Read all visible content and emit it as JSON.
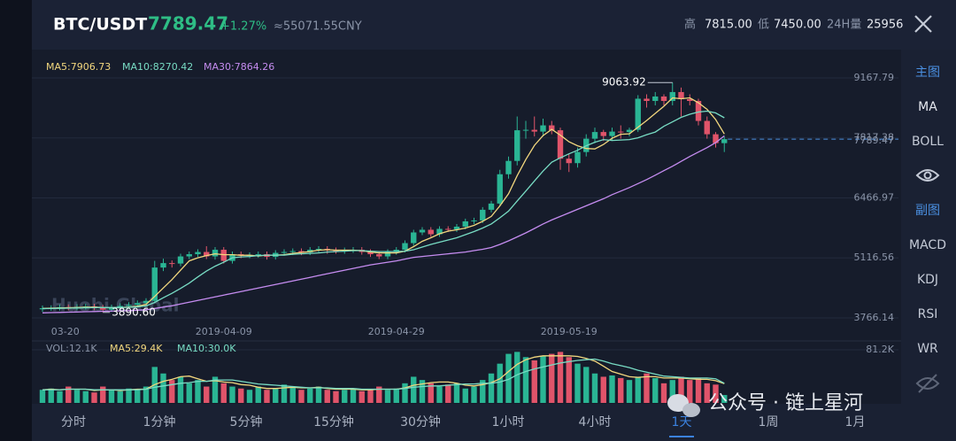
{
  "header": {
    "pair": "BTC/USDT",
    "price": "7789.47",
    "change": "+1.27%",
    "cny": "≈55071.55CNY",
    "high_label": "高",
    "high": "7815.00",
    "low_label": "低",
    "low": "7450.00",
    "vol_label": "24H量",
    "vol": "25956"
  },
  "sidebar": {
    "main": "主图",
    "main_items": [
      "MA",
      "BOLL"
    ],
    "sub": "副图",
    "sub_items": [
      "MACD",
      "KDJ",
      "RSI",
      "WR"
    ]
  },
  "tabs": [
    "分时",
    "1分钟",
    "5分钟",
    "15分钟",
    "30分钟",
    "1小时",
    "4小时",
    "1天",
    "1周",
    "1月"
  ],
  "active_tab": 7,
  "watermark": "公众号 · 链上星河",
  "logo": "Huobi Global",
  "chart_data": {
    "type": "candlestick",
    "up_color": "#2ab594",
    "down_color": "#e0546a",
    "categories": [
      null,
      "03-20",
      null,
      null,
      null,
      null,
      null,
      null,
      null,
      null,
      null,
      null,
      null,
      null,
      null,
      null,
      null,
      null,
      null,
      null,
      null,
      "2019-04-09",
      null,
      null,
      null,
      null,
      null,
      null,
      null,
      null,
      null,
      null,
      null,
      null,
      null,
      null,
      null,
      null,
      null,
      null,
      null,
      "2019-04-29",
      null,
      null,
      null,
      null,
      null,
      null,
      null,
      null,
      null,
      null,
      null,
      null,
      null,
      null,
      null,
      null,
      null,
      null,
      null,
      "2019-05-19",
      null,
      null,
      null,
      null,
      null,
      null,
      null,
      null,
      null,
      null,
      null,
      null,
      null,
      null,
      null,
      null,
      null,
      null
    ],
    "open": [
      3960,
      3985,
      3990,
      4010,
      3995,
      4015,
      4025,
      4000,
      3950,
      4005,
      4035,
      4060,
      4100,
      4150,
      4900,
      5000,
      4990,
      5150,
      5200,
      5250,
      5150,
      5300,
      5050,
      5200,
      5170,
      5180,
      5200,
      5140,
      5230,
      5250,
      5270,
      5240,
      5300,
      5320,
      5290,
      5270,
      5290,
      5300,
      5250,
      5200,
      5150,
      5250,
      5300,
      5450,
      5690,
      5750,
      5650,
      5770,
      5760,
      5820,
      5940,
      5960,
      6200,
      6340,
      7000,
      7300,
      7990,
      8000,
      7960,
      8100,
      7990,
      7350,
      7250,
      7500,
      7800,
      7950,
      7860,
      7960,
      7950,
      8000,
      8700,
      8650,
      8750,
      8650,
      8850,
      8690,
      8650,
      8200,
      7900,
      7700
    ],
    "high": [
      4045,
      4050,
      4070,
      4070,
      4075,
      4085,
      4085,
      4060,
      4065,
      4095,
      4120,
      4160,
      4210,
      5050,
      5100,
      5060,
      5210,
      5260,
      5310,
      5380,
      5360,
      5360,
      5260,
      5260,
      5240,
      5260,
      5260,
      5290,
      5310,
      5330,
      5330,
      5360,
      5380,
      5380,
      5350,
      5350,
      5360,
      5360,
      5310,
      5260,
      5310,
      5360,
      5510,
      5750,
      5810,
      5810,
      5830,
      5830,
      5880,
      6000,
      6020,
      6260,
      6400,
      7100,
      7400,
      8300,
      8200,
      8300,
      8250,
      8200,
      8050,
      7450,
      7600,
      7900,
      8050,
      8000,
      8050,
      8100,
      8050,
      8780,
      8800,
      8850,
      8800,
      9063.92,
      8950,
      8800,
      8700,
      8300,
      7950,
      7850
    ],
    "low": [
      3900,
      3925,
      3930,
      3935,
      3935,
      3955,
      3940,
      3890.6,
      3900,
      3945,
      3975,
      4000,
      4040,
      4100,
      4820,
      4900,
      4930,
      5090,
      5140,
      5090,
      5080,
      4990,
      4990,
      5110,
      5110,
      5120,
      5080,
      5080,
      5170,
      5180,
      5180,
      5180,
      5240,
      5210,
      5210,
      5210,
      5230,
      5190,
      5140,
      5090,
      5090,
      5190,
      5240,
      5390,
      5630,
      5590,
      5590,
      5700,
      5700,
      5760,
      5880,
      5900,
      6140,
      6280,
      6900,
      7200,
      7800,
      7850,
      7850,
      7900,
      7100,
      7050,
      7150,
      7400,
      7700,
      7750,
      7750,
      7800,
      7850,
      7950,
      8500,
      8550,
      8550,
      8550,
      8300,
      8550,
      8100,
      7800,
      7600,
      7500
    ],
    "close": [
      3985,
      3990,
      4010,
      3995,
      4015,
      4025,
      4000,
      3950,
      4005,
      4035,
      4060,
      4100,
      4150,
      4900,
      5000,
      4990,
      5150,
      5200,
      5250,
      5150,
      5300,
      5050,
      5200,
      5170,
      5180,
      5200,
      5140,
      5230,
      5250,
      5270,
      5240,
      5300,
      5320,
      5290,
      5270,
      5290,
      5300,
      5250,
      5200,
      5150,
      5250,
      5300,
      5450,
      5690,
      5750,
      5650,
      5770,
      5760,
      5820,
      5940,
      5960,
      6200,
      6340,
      7000,
      7300,
      7990,
      8000,
      7960,
      8100,
      7990,
      7350,
      7250,
      7500,
      7800,
      7950,
      7860,
      7960,
      7950,
      8000,
      8700,
      8650,
      8750,
      8650,
      8850,
      8690,
      8650,
      8200,
      7900,
      7700,
      7789.47
    ],
    "min_label": "3890.60",
    "ylim": [
      3766.14,
      9167.79
    ],
    "yticks": [
      9167.79,
      7817.38,
      6466.97,
      5116.56,
      3766.14
    ],
    "grid": true,
    "ma": [
      {
        "name": "MA5:7906.73",
        "color": "#f2d77e",
        "values": [
          3980,
          3985,
          3990,
          3995,
          4000,
          4005,
          4010,
          4000,
          3995,
          4000,
          4010,
          4030,
          4070,
          4250,
          4440,
          4630,
          4840,
          5050,
          5120,
          5170,
          5210,
          5190,
          5190,
          5175,
          5180,
          5160,
          5180,
          5180,
          5190,
          5220,
          5240,
          5260,
          5290,
          5300,
          5290,
          5290,
          5290,
          5280,
          5250,
          5230,
          5230,
          5230,
          5270,
          5370,
          5490,
          5570,
          5660,
          5720,
          5750,
          5790,
          5850,
          5940,
          6050,
          6290,
          6560,
          6970,
          7330,
          7650,
          7870,
          8010,
          7880,
          7730,
          7640,
          7580,
          7570,
          7670,
          7810,
          7900,
          7910,
          8060,
          8210,
          8370,
          8530,
          8720,
          8700,
          8720,
          8610,
          8460,
          8230,
          7906.73
        ]
      },
      {
        "name": "MA10:8270.42",
        "color": "#78dcc4",
        "values": [
          3975,
          3978,
          3982,
          3986,
          3990,
          3994,
          3998,
          4000,
          4000,
          4002,
          4005,
          4015,
          4035,
          4115,
          4220,
          4320,
          4430,
          4550,
          4690,
          4820,
          4930,
          5020,
          5120,
          5140,
          5150,
          5170,
          5180,
          5180,
          5180,
          5200,
          5210,
          5220,
          5230,
          5250,
          5260,
          5270,
          5280,
          5280,
          5270,
          5260,
          5260,
          5260,
          5270,
          5300,
          5360,
          5420,
          5470,
          5520,
          5570,
          5640,
          5710,
          5790,
          5880,
          6020,
          6170,
          6400,
          6620,
          6850,
          7070,
          7270,
          7370,
          7460,
          7540,
          7640,
          7720,
          7780,
          7760,
          7770,
          7780,
          7820,
          7890,
          7950,
          8080,
          8180,
          8280,
          8350,
          8400,
          8420,
          8380,
          8270.42
        ]
      },
      {
        "name": "MA30:7864.26",
        "color": "#c58cf0",
        "values": [
          3880,
          3885,
          3890,
          3895,
          3900,
          3905,
          3910,
          3915,
          3920,
          3925,
          3930,
          3940,
          3950,
          3980,
          4010,
          4040,
          4080,
          4120,
          4160,
          4200,
          4240,
          4280,
          4320,
          4360,
          4400,
          4440,
          4480,
          4520,
          4560,
          4600,
          4640,
          4680,
          4720,
          4760,
          4800,
          4840,
          4880,
          4920,
          4960,
          4990,
          5020,
          5050,
          5090,
          5130,
          5150,
          5170,
          5190,
          5210,
          5230,
          5250,
          5280,
          5310,
          5350,
          5420,
          5500,
          5590,
          5680,
          5780,
          5880,
          5970,
          6050,
          6130,
          6210,
          6290,
          6370,
          6450,
          6540,
          6620,
          6700,
          6790,
          6880,
          6980,
          7080,
          7180,
          7290,
          7400,
          7500,
          7600,
          7710,
          7864.26
        ]
      }
    ],
    "volume": {
      "type": "bar",
      "title": "VOL:12.1K",
      "values": [
        20,
        22,
        18,
        25,
        20,
        18,
        16,
        25,
        20,
        18,
        22,
        20,
        25,
        55,
        45,
        35,
        40,
        30,
        35,
        25,
        40,
        30,
        25,
        22,
        20,
        25,
        20,
        22,
        28,
        25,
        20,
        22,
        25,
        20,
        18,
        20,
        22,
        18,
        20,
        25,
        20,
        22,
        30,
        40,
        35,
        30,
        25,
        28,
        30,
        22,
        25,
        35,
        45,
        60,
        75,
        78,
        70,
        65,
        72,
        75,
        78,
        70,
        60,
        55,
        45,
        40,
        42,
        38,
        35,
        40,
        45,
        38,
        30,
        35,
        40,
        35,
        38,
        30,
        28,
        12.1
      ],
      "ylim": [
        0,
        81.2
      ],
      "yticks": [
        {
          "value": 81.2,
          "label": "81.2K"
        }
      ],
      "ma": [
        {
          "name": "MA5:29.4K",
          "color": "#f2d77e",
          "values": [
            20,
            21,
            20,
            21,
            21,
            21,
            19,
            20,
            20,
            19,
            20,
            21,
            21,
            28,
            33,
            36,
            40,
            41,
            37,
            33,
            34,
            32,
            31,
            28,
            27,
            24,
            22,
            22,
            23,
            24,
            23,
            23,
            24,
            22,
            21,
            21,
            21,
            20,
            20,
            21,
            21,
            21,
            23,
            27,
            29,
            31,
            32,
            32,
            30,
            27,
            26,
            28,
            31,
            37,
            48,
            59,
            66,
            70,
            72,
            72,
            72,
            72,
            71,
            68,
            64,
            56,
            48,
            44,
            40,
            39,
            40,
            40,
            38,
            38,
            38,
            37,
            36,
            36,
            34,
            29.4
          ]
        },
        {
          "name": "MA10:30.0K",
          "color": "#78dcc4",
          "values": [
            20,
            20,
            20,
            21,
            21,
            21,
            20,
            20,
            20,
            20,
            20,
            20,
            21,
            24,
            26,
            28,
            30,
            31,
            33,
            33,
            35,
            35,
            35,
            33,
            31,
            29,
            28,
            27,
            26,
            25,
            24,
            23,
            23,
            23,
            22,
            22,
            22,
            21,
            21,
            21,
            21,
            21,
            22,
            24,
            25,
            26,
            26,
            27,
            28,
            29,
            29,
            30,
            30,
            32,
            36,
            43,
            48,
            52,
            55,
            58,
            61,
            63,
            65,
            66,
            67,
            64,
            60,
            57,
            54,
            50,
            47,
            44,
            41,
            40,
            39,
            38,
            38,
            38,
            37,
            30
          ]
        }
      ]
    }
  }
}
